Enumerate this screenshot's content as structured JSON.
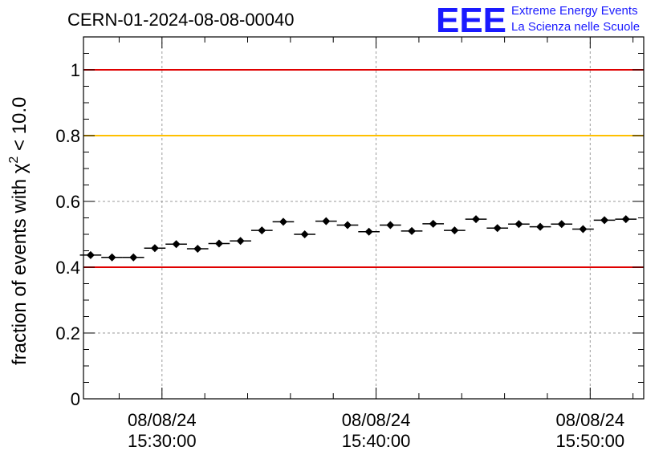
{
  "chart_data": {
    "type": "scatter",
    "title": "CERN-01-2024-08-08-00040",
    "ylabel": "fraction of events with χ² < 10.0",
    "ylabel_parts": {
      "pre": "fraction of events with ",
      "chi": "χ",
      "sup": "2",
      "post": " < 10.0"
    },
    "xlabel": "",
    "x_axis": {
      "type": "time",
      "range": [
        "2024-08-08 15:26:20",
        "2024-08-08 15:52:30"
      ],
      "tick_labels": [
        {
          "date": "08/08/24",
          "time": "15:30:00"
        },
        {
          "date": "08/08/24",
          "time": "15:40:00"
        },
        {
          "date": "08/08/24",
          "time": "15:50:00"
        }
      ]
    },
    "ylim": [
      0,
      1.1
    ],
    "y_ticks": [
      "0",
      "0.2",
      "0.4",
      "0.6",
      "0.8",
      "1"
    ],
    "grid": true,
    "reference_lines": [
      {
        "y": 1.0,
        "color": "#e00000"
      },
      {
        "y": 0.8,
        "color": "#ffc000"
      },
      {
        "y": 0.4,
        "color": "#e00000"
      }
    ],
    "series": [
      {
        "marker": "diamond",
        "color": "#000000",
        "x": [
          "15:26:40",
          "15:27:40",
          "15:28:40",
          "15:29:40",
          "15:30:40",
          "15:31:40",
          "15:32:40",
          "15:33:40",
          "15:34:40",
          "15:35:40",
          "15:36:40",
          "15:37:40",
          "15:38:40",
          "15:39:40",
          "15:40:40",
          "15:41:40",
          "15:42:40",
          "15:43:40",
          "15:44:40",
          "15:45:40",
          "15:46:40",
          "15:47:40",
          "15:48:40",
          "15:49:40",
          "15:50:40",
          "15:51:40"
        ],
        "y": [
          0.437,
          0.43,
          0.43,
          0.458,
          0.47,
          0.456,
          0.472,
          0.48,
          0.512,
          0.538,
          0.5,
          0.54,
          0.528,
          0.508,
          0.528,
          0.51,
          0.532,
          0.512,
          0.546,
          0.519,
          0.531,
          0.523,
          0.531,
          0.516,
          0.543,
          0.546
        ],
        "xerr_seconds": 30,
        "yerr": 0.006
      }
    ]
  },
  "logo": {
    "mark": "EEE",
    "line1": "Extreme Energy Events",
    "line2": "La Scienza nelle Scuole",
    "color": "#1a1aff"
  }
}
